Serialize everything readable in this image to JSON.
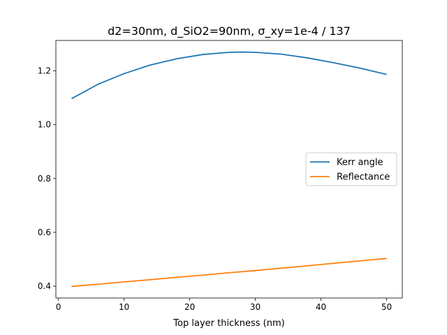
{
  "chart_data": {
    "type": "line",
    "title": "d2=30nm, d_SiO2=90nm, σ_xy=1e-4 / 137",
    "xlabel": "Top layer thickness (nm)",
    "ylabel": "",
    "xlim": [
      -0.4,
      52.4
    ],
    "ylim": [
      0.356,
      1.313
    ],
    "xticks": [
      0,
      10,
      20,
      30,
      40,
      50
    ],
    "yticks": [
      0.4,
      0.6,
      0.8,
      1.0,
      1.2
    ],
    "xtick_labels": [
      "0",
      "10",
      "20",
      "30",
      "40",
      "50"
    ],
    "ytick_labels": [
      "0.4",
      "0.6",
      "0.8",
      "1.0",
      "1.2"
    ],
    "grid": false,
    "legend": "center-right",
    "x": [
      2,
      6,
      10,
      14,
      18,
      22,
      26,
      28,
      30,
      34,
      38,
      42,
      46,
      50
    ],
    "series": [
      {
        "name": "Kerr angle",
        "color": "#1f77b4",
        "values": [
          1.097,
          1.15,
          1.19,
          1.222,
          1.245,
          1.261,
          1.269,
          1.27,
          1.269,
          1.262,
          1.248,
          1.23,
          1.21,
          1.187
        ]
      },
      {
        "name": "Reflectance",
        "color": "#ff7f0e",
        "values": [
          0.399,
          0.407,
          0.416,
          0.424,
          0.433,
          0.441,
          0.45,
          0.454,
          0.458,
          0.467,
          0.476,
          0.485,
          0.494,
          0.503
        ]
      }
    ]
  }
}
